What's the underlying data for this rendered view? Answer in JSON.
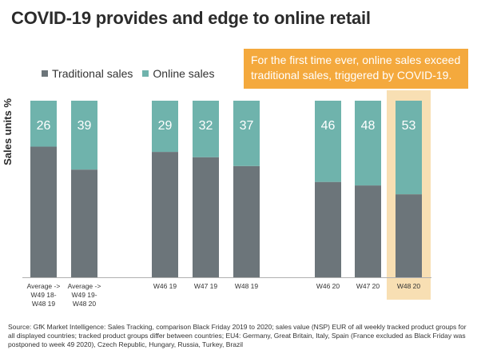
{
  "title": "COVID-19 provides and edge to online retail",
  "legend": [
    {
      "label": "Traditional sales",
      "color": "#6c757a"
    },
    {
      "label": "Online sales",
      "color": "#6fb3ac"
    }
  ],
  "callout": "For the first time ever, online sales exceed traditional sales, triggered by COVID-19.",
  "source": "Source: GfK Market Intelligence: Sales Tracking, comparison Black Friday 2019 to 2020; sales value (NSP) EUR of all weekly tracked product groups for all displayed countries; tracked product groups differ between countries; EU4: Germany, Great Britain, Italy, Spain (France excluded as Black Friday was postponed to week 49 2020), Czech Republic, Hungary, Russia, Turkey, Brazil",
  "chart_data": {
    "type": "bar",
    "stacked": true,
    "ylabel": "Sales units %",
    "ylim": [
      0,
      100
    ],
    "categories": [
      [
        "Average ->",
        "W49 18-",
        "W48 19"
      ],
      [
        "Average ->",
        "W49 19-",
        "W48 20"
      ],
      [
        "W46 19"
      ],
      [
        "W47 19"
      ],
      [
        "W48 19"
      ],
      [
        "W46 20"
      ],
      [
        "W47 20"
      ],
      [
        "W48 20"
      ]
    ],
    "series": [
      {
        "name": "Traditional sales",
        "values": [
          74,
          61,
          71,
          68,
          63,
          54,
          52,
          47
        ],
        "color": "#6c757a"
      },
      {
        "name": "Online sales",
        "values": [
          26,
          39,
          29,
          32,
          37,
          46,
          48,
          53
        ],
        "color": "#6fb3ac"
      }
    ],
    "highlight_category": 7,
    "highlight_color": "#f8dfb3"
  }
}
